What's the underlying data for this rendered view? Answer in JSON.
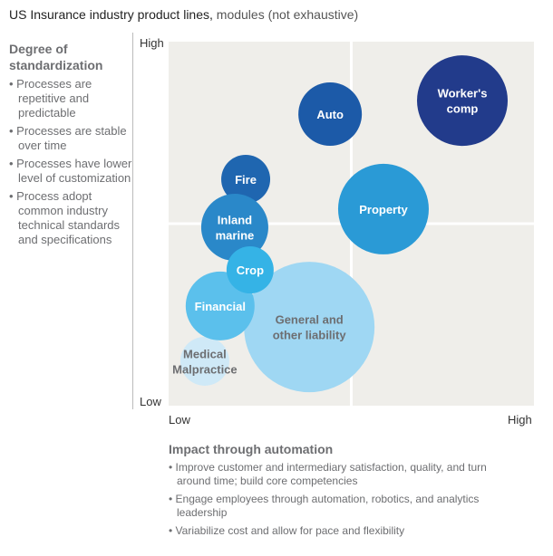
{
  "title": {
    "bold": "US Insurance industry product lines,",
    "rest": " modules (not exhaustive)"
  },
  "left_panel": {
    "heading": "Degree of standardization",
    "bullets": [
      "Processes are repetitive and predictable",
      "Processes are stable over time",
      "Processes have lower level of customization",
      "Process adopt common industry technical standards and specifications"
    ]
  },
  "bottom_panel": {
    "heading": "Impact through automation",
    "bullets": [
      "Improve customer and intermediary satisfaction, quality, and turn around time; build core competencies",
      "Engage employees through automation, robotics, and analytics leadership",
      "Variabilize cost and allow for pace and flexibility"
    ]
  },
  "chart_data": {
    "type": "bubble",
    "title": "US Insurance industry product lines, modules (not exhaustive)",
    "xlabel": "Impact through automation",
    "ylabel": "Degree of standardization",
    "xlim": [
      0,
      100
    ],
    "ylim": [
      0,
      100
    ],
    "x_ticks": [
      "Low",
      "High"
    ],
    "y_ticks": [
      "Low",
      "High"
    ],
    "quadrant_dividers": {
      "x": 50,
      "y": 50
    },
    "background": "#efeeea",
    "bubbles": [
      {
        "label": "Medical Malpractice",
        "x": 9.9,
        "y": 12.2,
        "size": 27,
        "color": "#cfe9f7",
        "text_color": "#6d6e71"
      },
      {
        "label": "General and other liability",
        "x": 38.5,
        "y": 21.6,
        "size": 72,
        "color": "#9fd7f3",
        "text_color": "#6d6e71"
      },
      {
        "label": "Fire",
        "x": 21.1,
        "y": 62.2,
        "size": 27,
        "color": "#1f66b0",
        "text_color": "#ffffff"
      },
      {
        "label": "Inland marine",
        "x": 18.1,
        "y": 49.0,
        "size": 37,
        "color": "#2a88c9",
        "text_color": "#ffffff"
      },
      {
        "label": "Financial",
        "x": 14.1,
        "y": 27.4,
        "size": 38,
        "color": "#5bc0ec",
        "text_color": "#ffffff"
      },
      {
        "label": "Crop",
        "x": 22.3,
        "y": 37.3,
        "size": 26,
        "color": "#35b3e6",
        "text_color": "#ffffff"
      },
      {
        "label": "Auto",
        "x": 44.2,
        "y": 80.1,
        "size": 35,
        "color": "#1c5aa8",
        "text_color": "#ffffff"
      },
      {
        "label": "Property",
        "x": 58.8,
        "y": 54.0,
        "size": 50,
        "color": "#2a9ad6",
        "text_color": "#ffffff"
      },
      {
        "label": "Worker's comp",
        "x": 80.4,
        "y": 83.8,
        "size": 50,
        "color": "#223b8b",
        "text_color": "#ffffff"
      }
    ]
  }
}
